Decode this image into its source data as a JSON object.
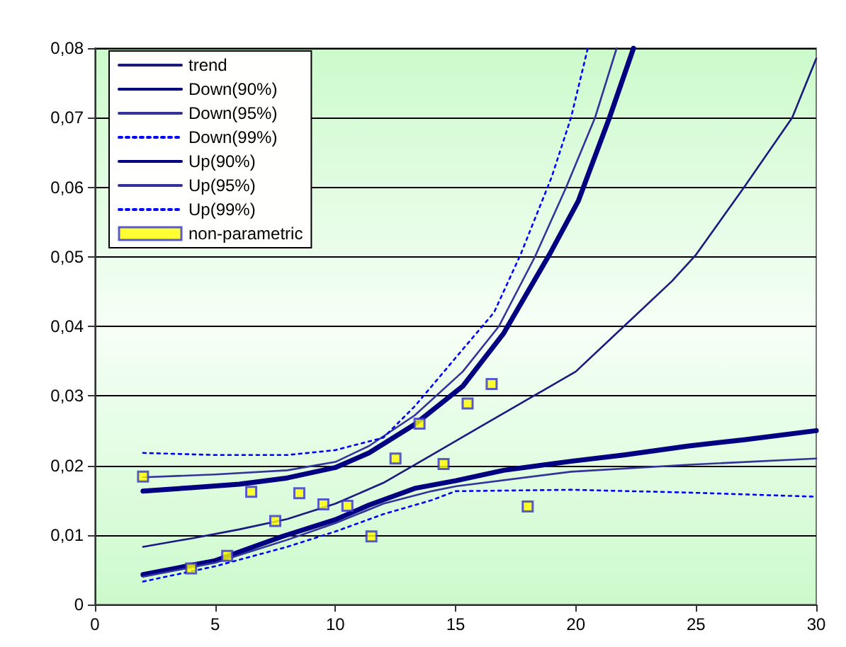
{
  "chart_data": {
    "type": "line",
    "xlim": [
      0,
      30
    ],
    "xticks": [
      0,
      5,
      10,
      15,
      20,
      25,
      30
    ],
    "ylim": [
      0,
      0.08
    ],
    "yticks": [
      {
        "value": 0,
        "label": "0"
      },
      {
        "value": 0.01,
        "label": "0,01"
      },
      {
        "value": 0.02,
        "label": "0,02"
      },
      {
        "value": 0.03,
        "label": "0,03"
      },
      {
        "value": 0.04,
        "label": "0,04"
      },
      {
        "value": 0.05,
        "label": "0,05"
      },
      {
        "value": 0.06,
        "label": "0,06"
      },
      {
        "value": 0.07,
        "label": "0,07"
      },
      {
        "value": 0.08,
        "label": "0,08"
      }
    ],
    "grid": "y",
    "legend": "top left",
    "marker": "none",
    "series": [
      {
        "name": "trend",
        "color": "#1a1a80",
        "line_style": "solid",
        "x": [
          2,
          4,
          6,
          8,
          10,
          12,
          14,
          15,
          16,
          18,
          20,
          22,
          24,
          25,
          27,
          29,
          30
        ],
        "values": [
          0.0083,
          0.0095,
          0.0108,
          0.0123,
          0.0145,
          0.0175,
          0.0215,
          0.0235,
          0.0255,
          0.0295,
          0.0335,
          0.04,
          0.0465,
          0.0503,
          0.06,
          0.07,
          0.0785
        ]
      },
      {
        "name": "Down(90%)",
        "color": "#000080",
        "line_style": "solid",
        "x": [
          2,
          4,
          6,
          8,
          10,
          11.4,
          13.3,
          15.3,
          17,
          18.9,
          20.1,
          21.4,
          22.4
        ],
        "values": [
          0.0163,
          0.0168,
          0.0173,
          0.0182,
          0.0197,
          0.0218,
          0.0259,
          0.0314,
          0.039,
          0.0503,
          0.058,
          0.07,
          0.08
        ]
      },
      {
        "name": "Down(95%)",
        "color": "#333399",
        "line_style": "solid",
        "x": [
          2,
          5,
          8,
          10,
          11.4,
          13.3,
          15.3,
          16.8,
          18.3,
          19.6,
          20.8,
          21.7
        ],
        "values": [
          0.0183,
          0.0187,
          0.0193,
          0.0205,
          0.0228,
          0.0272,
          0.0335,
          0.04,
          0.05,
          0.06,
          0.07,
          0.08
        ]
      },
      {
        "name": "Down(99%)",
        "color": "#0000ff",
        "line_style": "dotted",
        "x": [
          2,
          5,
          8,
          10,
          12,
          13.3,
          15.3,
          16.6,
          17.7,
          19,
          19.8,
          20.5
        ],
        "values": [
          0.0218,
          0.0215,
          0.0215,
          0.0222,
          0.024,
          0.0285,
          0.0367,
          0.042,
          0.0503,
          0.0615,
          0.07,
          0.08
        ]
      },
      {
        "name": "Up(90%)",
        "color": "#000080",
        "line_style": "solid",
        "x": [
          2,
          5,
          7.8,
          10,
          11.4,
          13.3,
          15,
          17,
          19.8,
          22,
          24.7,
          27,
          30
        ],
        "values": [
          0.0043,
          0.0063,
          0.0098,
          0.0122,
          0.0143,
          0.0167,
          0.0178,
          0.0193,
          0.0206,
          0.0215,
          0.0228,
          0.0237,
          0.025
        ]
      },
      {
        "name": "Up(95%)",
        "color": "#333399",
        "line_style": "solid",
        "x": [
          2,
          5,
          8,
          10,
          12,
          14,
          15,
          19.8,
          24.7,
          30
        ],
        "values": [
          0.004,
          0.006,
          0.0093,
          0.0117,
          0.0145,
          0.0163,
          0.017,
          0.0191,
          0.0201,
          0.021
        ]
      },
      {
        "name": "Up(99%)",
        "color": "#0000ff",
        "line_style": "dotted",
        "x": [
          2,
          5,
          8,
          10,
          12,
          14,
          15,
          19.8,
          24.7,
          30
        ],
        "values": [
          0.0033,
          0.0055,
          0.0083,
          0.0105,
          0.013,
          0.015,
          0.0163,
          0.0165,
          0.0161,
          0.0155
        ]
      },
      {
        "name": "non-parametric",
        "type": "scatter",
        "marker": "square",
        "color": "#ffff00",
        "x": [
          2,
          4,
          5.5,
          6.5,
          7.5,
          8.5,
          9.5,
          10.5,
          11.5,
          12.5,
          13.5,
          14.5,
          15.5,
          16.5,
          18
        ],
        "values": [
          0.0184,
          0.0052,
          0.007,
          0.0162,
          0.012,
          0.016,
          0.0144,
          0.0142,
          0.0098,
          0.021,
          0.026,
          0.0202,
          0.0289,
          0.0317,
          0.0141
        ]
      }
    ]
  }
}
